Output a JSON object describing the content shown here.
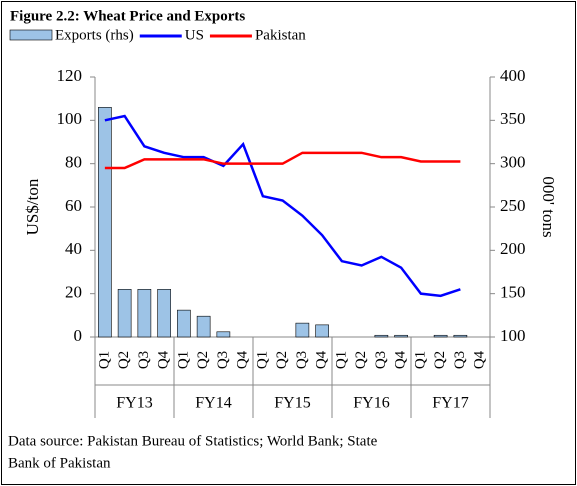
{
  "chart_data": {
    "type": "bar-line",
    "title": "Figure 2.2: Wheat Price and Exports",
    "ylabel": "US$/ton",
    "y2label": "000' tons",
    "source": [
      "Data source: Pakistan Bureau of Statistics; World Bank; State",
      "Bank of Pakistan"
    ],
    "categories": [
      "Q1",
      "Q2",
      "Q3",
      "Q4",
      "Q1",
      "Q2",
      "Q3",
      "Q4",
      "Q1",
      "Q2",
      "Q3",
      "Q4",
      "Q1",
      "Q2",
      "Q3",
      "Q4",
      "Q1",
      "Q2",
      "Q3",
      "Q4"
    ],
    "groups": [
      "FY13",
      "FY14",
      "FY15",
      "FY16",
      "FY17"
    ],
    "series": [
      {
        "name": "Exports (rhs)",
        "kind": "bar",
        "axis": "y2",
        "color": "#9dc3e6",
        "values": [
          365,
          155,
          155,
          155,
          131,
          124,
          106,
          null,
          null,
          null,
          116,
          114,
          null,
          null,
          102,
          102,
          null,
          102,
          102,
          null
        ]
      },
      {
        "name": "US",
        "kind": "line",
        "color": "#0000ff",
        "values": [
          100,
          102,
          88,
          85,
          83,
          83,
          79,
          89,
          65,
          63,
          56,
          47,
          35,
          33,
          37,
          32,
          20,
          19,
          22,
          null
        ]
      },
      {
        "name": "Pakistan",
        "kind": "line",
        "color": "#ff0000",
        "values": [
          78,
          78,
          82,
          82,
          82,
          82,
          80,
          80,
          80,
          80,
          85,
          85,
          85,
          85,
          83,
          83,
          81,
          81,
          81,
          null
        ]
      }
    ],
    "ylim": [
      0,
      120
    ],
    "yticks": [
      0,
      20,
      40,
      60,
      80,
      100,
      120
    ],
    "y2lim": [
      100,
      400
    ],
    "y2ticks": [
      100,
      150,
      200,
      250,
      300,
      350,
      400
    ]
  }
}
